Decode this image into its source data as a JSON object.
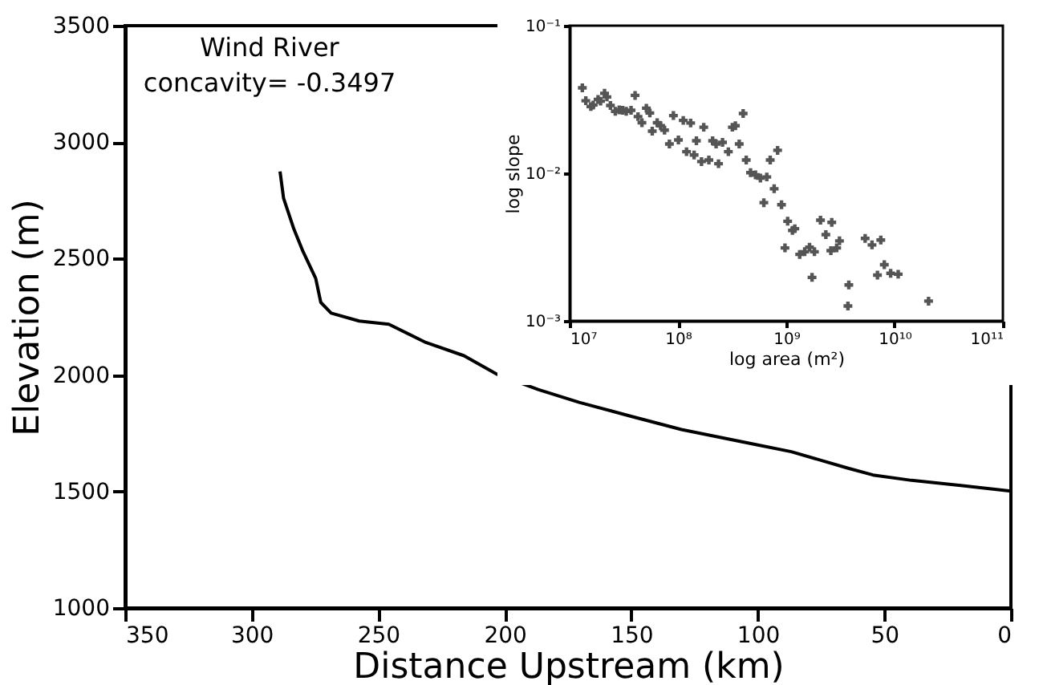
{
  "chart_data": [
    {
      "type": "line",
      "xlabel": "Distance Upstream (km)",
      "ylabel": "Elevation (m)",
      "annotations": [
        "Wind River",
        "concavity= -0.3497"
      ],
      "x": [
        288.8,
        287.4,
        283.3,
        279.7,
        274.7,
        272.7,
        268.6,
        257.5,
        245.8,
        231.2,
        216.1,
        203.0,
        186.8,
        170.6,
        150.4,
        130.2,
        100,
        86.8,
        64.6,
        54.5,
        39.3,
        19.1,
        0
      ],
      "series": [
        {
          "color": "#000000",
          "values": [
            2874,
            2759,
            2626,
            2530,
            2415,
            2312,
            2266,
            2232,
            2218,
            2140,
            2083,
            2003,
            1938,
            1883,
            1824,
            1766,
            1700,
            1671,
            1601,
            1571,
            1548,
            1525,
            1502
          ]
        }
      ],
      "xlim": [
        350,
        0
      ],
      "xticks": [
        350,
        300,
        250,
        200,
        150,
        100,
        50,
        0
      ],
      "ylim": [
        1000,
        3500
      ],
      "yticks": [
        1000,
        1500,
        2000,
        2500,
        3000,
        3500
      ]
    },
    {
      "type": "scatter",
      "log": "xy",
      "marker": "cross",
      "xlabel": "log area (m²)",
      "ylabel": "log slope",
      "x": [
        13100000.0,
        14100000.0,
        15700000.0,
        16500000.0,
        18300000.0,
        19300000.0,
        21000000.0,
        22100000.0,
        23800000.0,
        26400000.0,
        28700000.0,
        30900000.0,
        33300000.0,
        36900000.0,
        40200000.0,
        42800000.0,
        46500000.0,
        51100000.0,
        55000000.0,
        57900000.0,
        64300000.0,
        69200000.0,
        75200000.0,
        83400000.0,
        90800000.0,
        101000000.0,
        112000000.0,
        120000000.0,
        131000000.0,
        141000000.0,
        148000000.0,
        165000000.0,
        173000000.0,
        193000000.0,
        209000000.0,
        225000000.0,
        237000000.0,
        258000000.0,
        292000000.0,
        318000000.0,
        339000000.0,
        368000000.0,
        400000000.0,
        427000000.0,
        468000000.0,
        520000000.0,
        577000000.0,
        661000000.0,
        621000000.0,
        711000000.0,
        832000000.0,
        773000000.0,
        904000000.0,
        973000000.0,
        1030000000.0,
        1140000000.0,
        1200000000.0,
        1330000000.0,
        1480000000.0,
        1640000000.0,
        1820000000.0,
        1730000000.0,
        2070000000.0,
        2320000000.0,
        2580000000.0,
        2630000000.0,
        2920000000.0,
        3100000000.0,
        3780000000.0,
        3710000000.0,
        5350000000.0,
        6190000000.0,
        7460000000.0,
        6950000000.0,
        8040000000.0,
        9200000000.0,
        10800000000.0,
        20600000000.0
      ],
      "series": [
        {
          "color": "#555555",
          "values": [
            0.0379,
            0.031,
            0.0283,
            0.029,
            0.0316,
            0.0308,
            0.0348,
            0.0329,
            0.0288,
            0.0263,
            0.0269,
            0.0267,
            0.0263,
            0.0267,
            0.0337,
            0.0242,
            0.022,
            0.0276,
            0.0256,
            0.0193,
            0.022,
            0.021,
            0.0196,
            0.0158,
            0.0246,
            0.0168,
            0.0228,
            0.014,
            0.0219,
            0.0133,
            0.0166,
            0.012,
            0.0205,
            0.0123,
            0.0166,
            0.0158,
            0.0116,
            0.0162,
            0.014,
            0.0205,
            0.021,
            0.0158,
            0.0254,
            0.0123,
            0.0101,
            0.00975,
            0.00927,
            0.00944,
            0.00632,
            0.0123,
            0.0143,
            0.00785,
            0.00612,
            0.00312,
            0.00473,
            0.0041,
            0.00421,
            0.00282,
            0.00294,
            0.00315,
            0.00294,
            0.00197,
            0.00481,
            0.00384,
            0.00299,
            0.00465,
            0.00312,
            0.00348,
            0.00175,
            0.00126,
            0.00362,
            0.00327,
            0.00353,
            0.00204,
            0.0024,
            0.0021,
            0.00207,
            0.00136
          ]
        }
      ],
      "xlim": [
        10000000.0,
        100000000000.0
      ],
      "xticks": [
        {
          "value": 10000000.0,
          "label": "10⁷"
        },
        {
          "value": 100000000.0,
          "label": "10⁸"
        },
        {
          "value": 1000000000.0,
          "label": "10⁹"
        },
        {
          "value": 10000000000.0,
          "label": "10¹⁰"
        },
        {
          "value": 100000000000.0,
          "label": "10¹¹"
        }
      ],
      "ylim": [
        0.001,
        0.1
      ],
      "yticks": [
        {
          "value": 0.001,
          "label": "10⁻³"
        },
        {
          "value": 0.01,
          "label": "10⁻²"
        },
        {
          "value": 0.1,
          "label": "10⁻¹"
        }
      ]
    }
  ]
}
